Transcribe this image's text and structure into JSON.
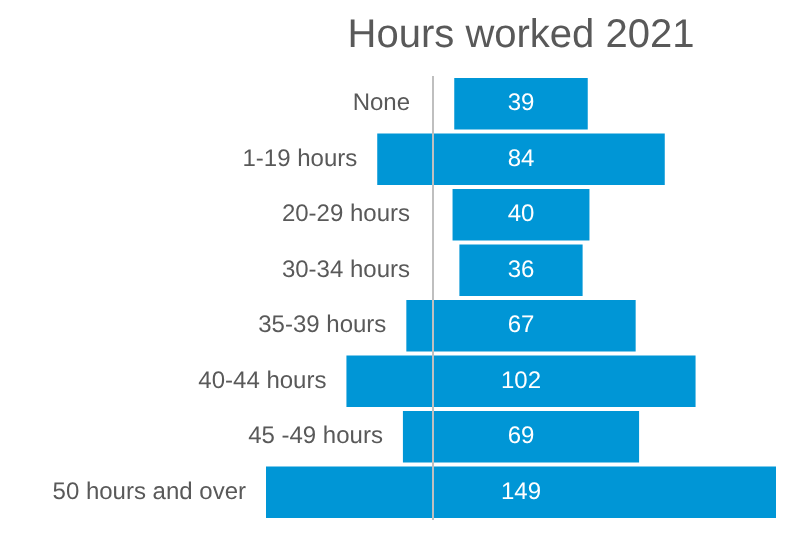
{
  "chart_data": {
    "type": "other",
    "title": "Hours worked 2021",
    "categories": [
      "None",
      "1-19 hours",
      "20-29 hours",
      "30-34 hours",
      "35-39 hours",
      "40-44 hours",
      "45 -49 hours",
      "50 hours and over"
    ],
    "values": [
      39,
      84,
      40,
      36,
      67,
      102,
      69,
      149
    ],
    "color": "#0096d6",
    "data_labels": true
  }
}
